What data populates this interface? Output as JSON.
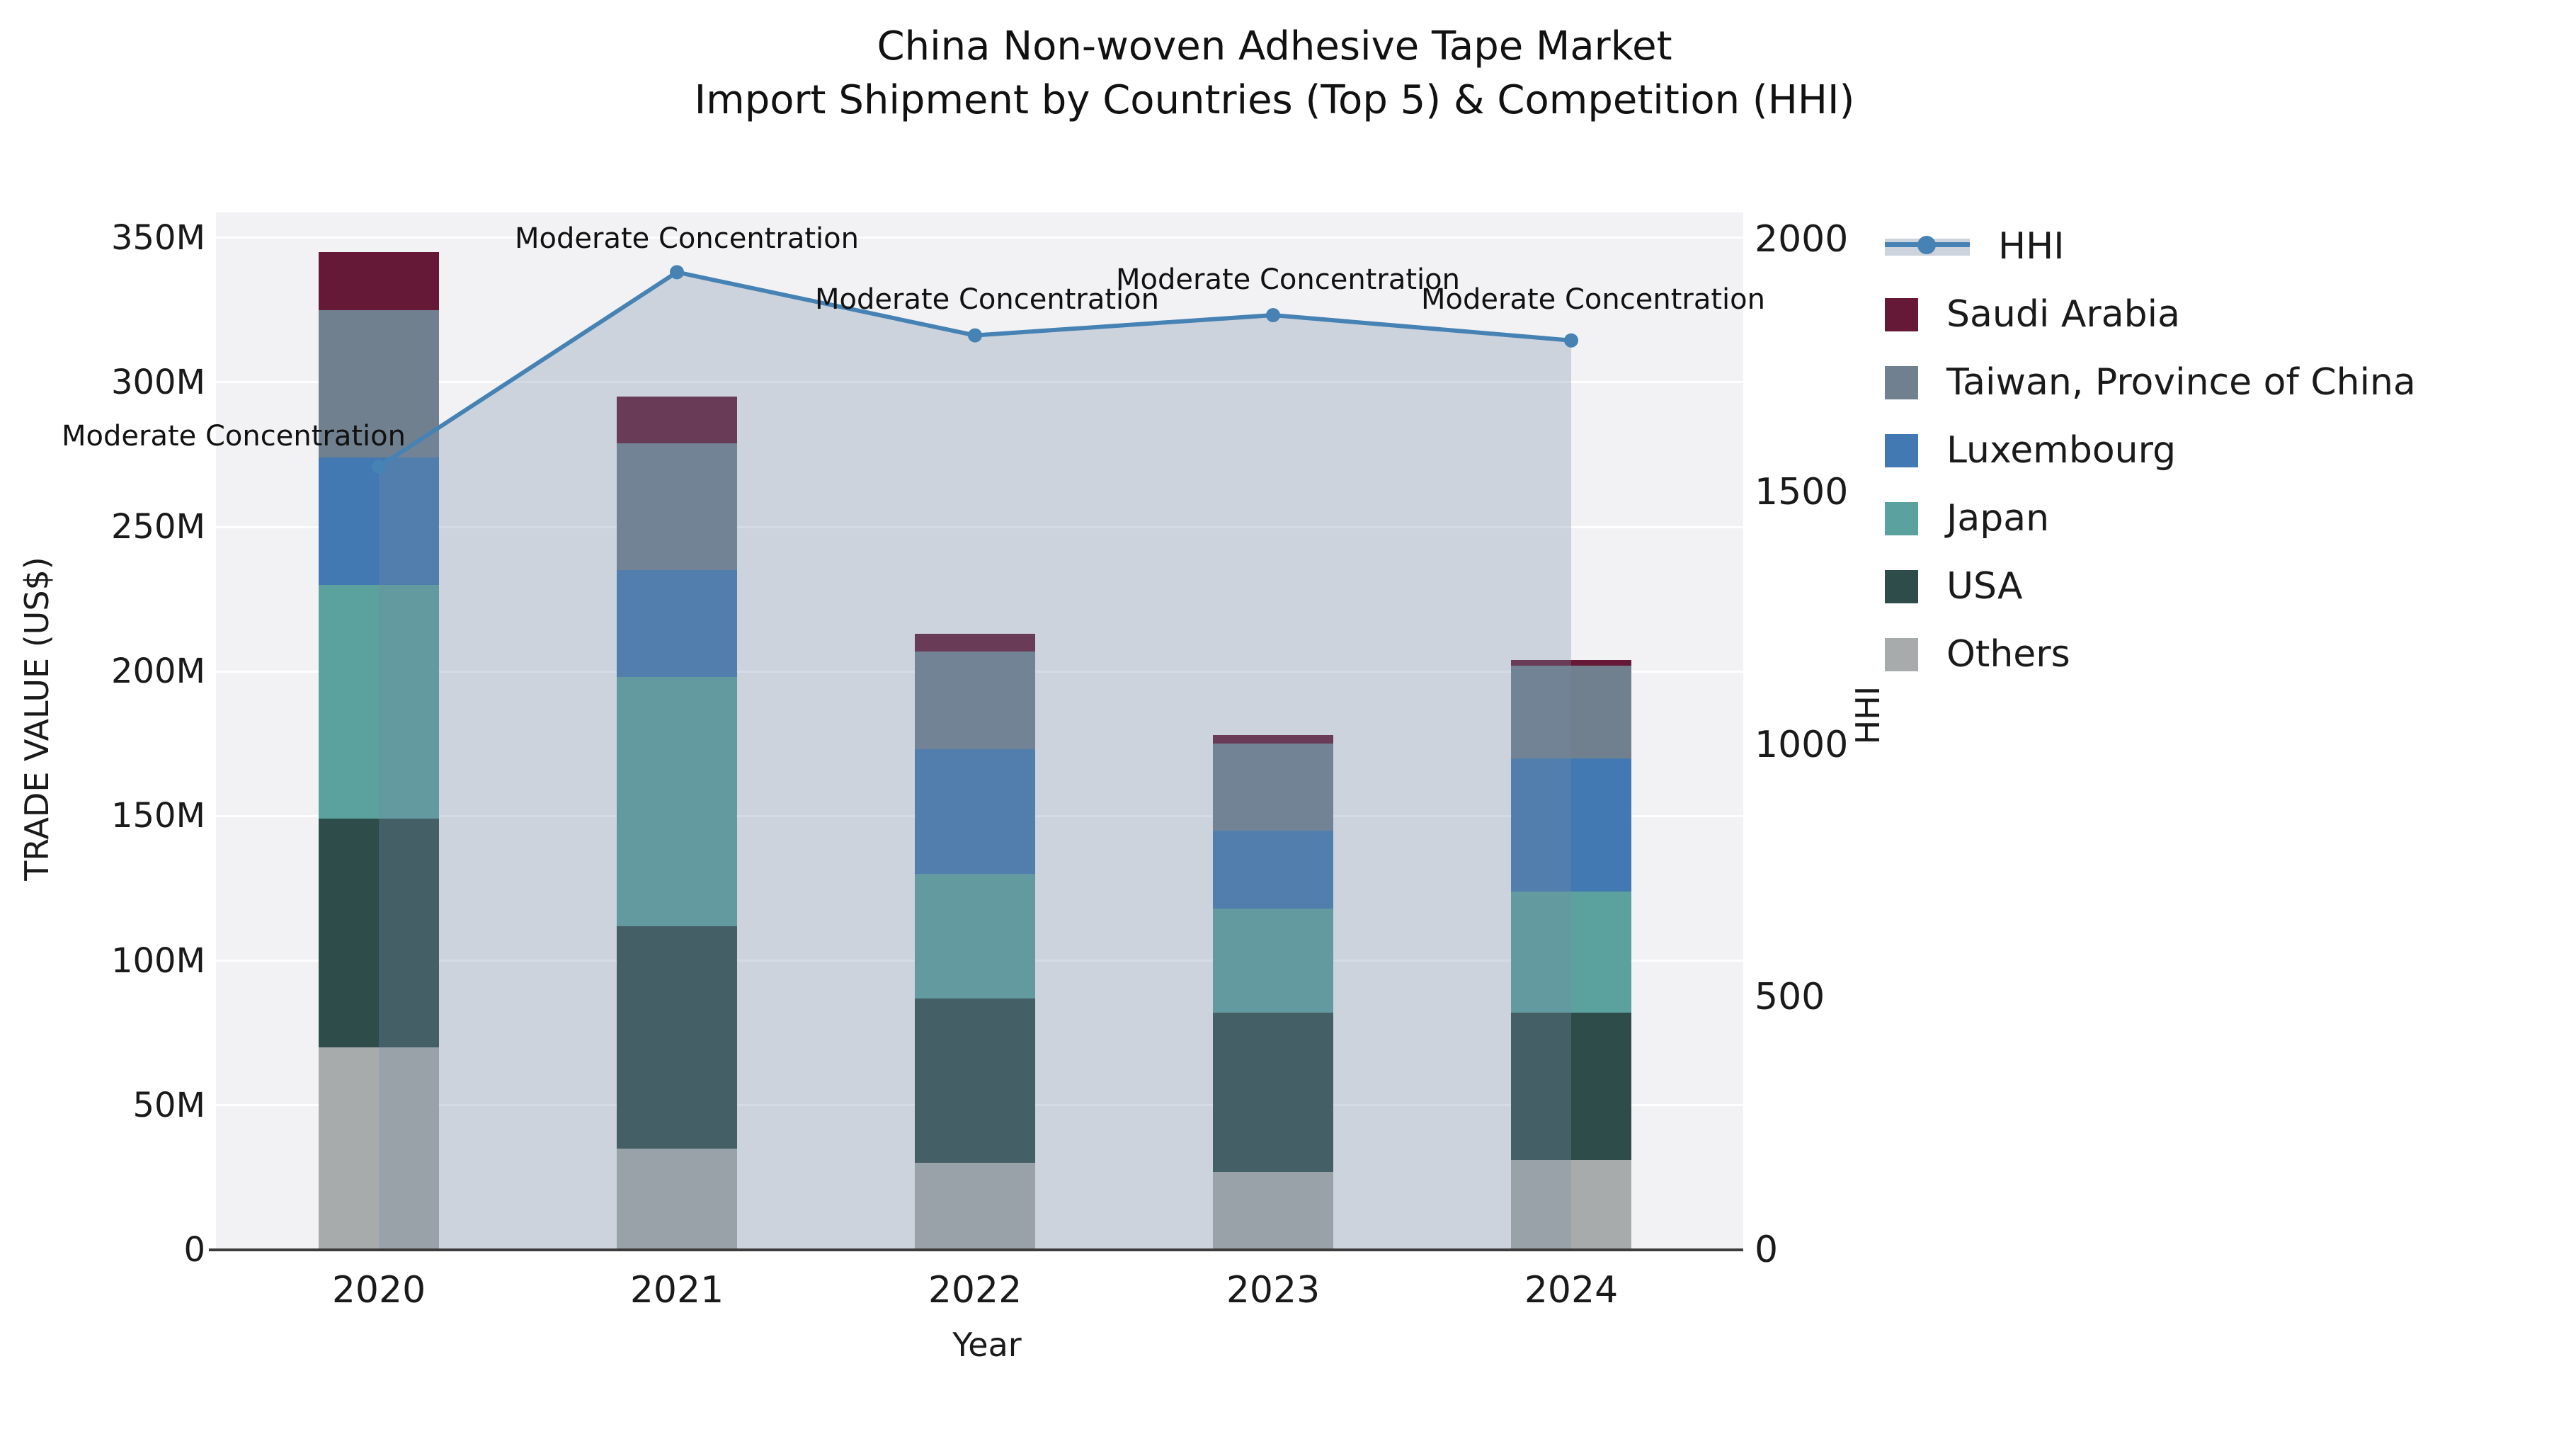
{
  "title_line1": "China Non-woven Adhesive Tape Market",
  "title_line2": "Import Shipment by Countries (Top 5) & Competition (HHI)",
  "axes": {
    "x_label": "Year",
    "y_left_label": "TRADE VALUE (US$)",
    "y_right_label": "HHI",
    "y_left_ticks": [
      {
        "label": "0",
        "value": 0
      },
      {
        "label": "50M",
        "value": 50
      },
      {
        "label": "100M",
        "value": 100
      },
      {
        "label": "150M",
        "value": 150
      },
      {
        "label": "200M",
        "value": 200
      },
      {
        "label": "250M",
        "value": 250
      },
      {
        "label": "300M",
        "value": 300
      },
      {
        "label": "350M",
        "value": 350
      }
    ],
    "y_right_ticks": [
      {
        "label": "0",
        "value": 0
      },
      {
        "label": "500",
        "value": 500
      },
      {
        "label": "1000",
        "value": 1000
      },
      {
        "label": "1500",
        "value": 1500
      },
      {
        "label": "2000",
        "value": 2000
      }
    ],
    "y_left_max": 350,
    "y_right_max": 2000,
    "grid": true
  },
  "legend": {
    "hhi": {
      "label": "HHI",
      "line_color": "#4682b4",
      "band_color": "#ccd3dc"
    },
    "items": [
      {
        "label": "Saudi Arabia",
        "color": "#651936"
      },
      {
        "label": "Taiwan, Province of China",
        "color": "#70808f"
      },
      {
        "label": "Luxembourg",
        "color": "#4279b2"
      },
      {
        "label": "Japan",
        "color": "#5ba19e"
      },
      {
        "label": "USA",
        "color": "#2e4c49"
      },
      {
        "label": "Others",
        "color": "#a8abab"
      }
    ]
  },
  "annotation_text": "Moderate Concentration",
  "chart_data": {
    "type": "bar+line",
    "bar_units": "million US$",
    "categories": [
      "2020",
      "2021",
      "2022",
      "2023",
      "2024"
    ],
    "series": [
      {
        "name": "Others",
        "color": "#a8abab",
        "values": [
          70,
          35,
          30,
          27,
          31
        ]
      },
      {
        "name": "USA",
        "color": "#2e4c49",
        "values": [
          79,
          77,
          57,
          55,
          51
        ]
      },
      {
        "name": "Japan",
        "color": "#5ba19e",
        "values": [
          81,
          86,
          43,
          36,
          42
        ]
      },
      {
        "name": "Luxembourg",
        "color": "#4279b2",
        "values": [
          44,
          37,
          43,
          27,
          46
        ]
      },
      {
        "name": "Taiwan, Province of China",
        "color": "#70808f",
        "values": [
          51,
          44,
          34,
          30,
          32
        ]
      },
      {
        "name": "Saudi Arabia",
        "color": "#651936",
        "values": [
          20,
          16,
          6,
          3,
          2
        ]
      }
    ],
    "bar_totals": [
      345,
      295,
      213,
      178,
      204
    ],
    "line": {
      "name": "HHI",
      "color": "#4682b4",
      "area_fill": "rgba(120,140,165,0.30)",
      "values": [
        1550,
        1935,
        1810,
        1850,
        1800
      ],
      "annotations": [
        "Moderate Concentration",
        "Moderate Concentration",
        "Moderate Concentration",
        "Moderate Concentration",
        "Moderate Concentration"
      ]
    },
    "ylim_left": [
      0,
      350
    ],
    "ylim_right": [
      0,
      2000
    ],
    "legend_position": "right",
    "grid": "horizontal"
  }
}
